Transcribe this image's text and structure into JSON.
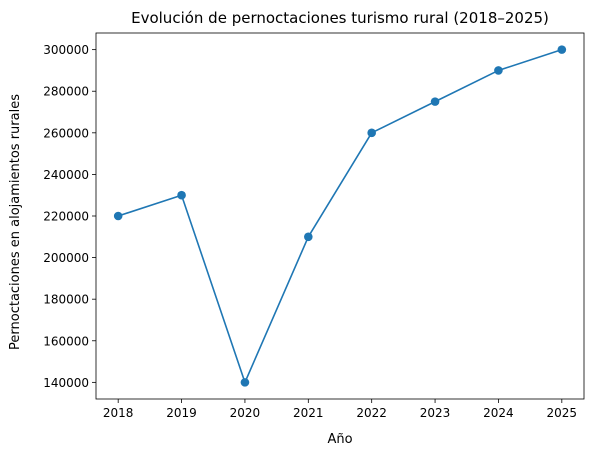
{
  "chart_data": {
    "type": "line",
    "title": "Evolución de pernoctaciones turismo rural (2018–2025)",
    "xlabel": "Año",
    "ylabel": "Pernoctaciones en alojamientos rurales",
    "x": [
      2018,
      2019,
      2020,
      2021,
      2022,
      2023,
      2024,
      2025
    ],
    "series": [
      {
        "values": [
          220000,
          230000,
          140000,
          210000,
          260000,
          275000,
          290000,
          300000
        ]
      }
    ],
    "x_ticks": [
      "2018",
      "2019",
      "2020",
      "2021",
      "2022",
      "2023",
      "2024",
      "2025"
    ],
    "y_ticks": [
      140000,
      160000,
      180000,
      200000,
      220000,
      240000,
      260000,
      280000,
      300000
    ],
    "ylim": [
      132000,
      308000
    ],
    "xlim": [
      2017.65,
      2025.35
    ],
    "marker": "circle",
    "grid": false,
    "color": "#1f77b4"
  }
}
